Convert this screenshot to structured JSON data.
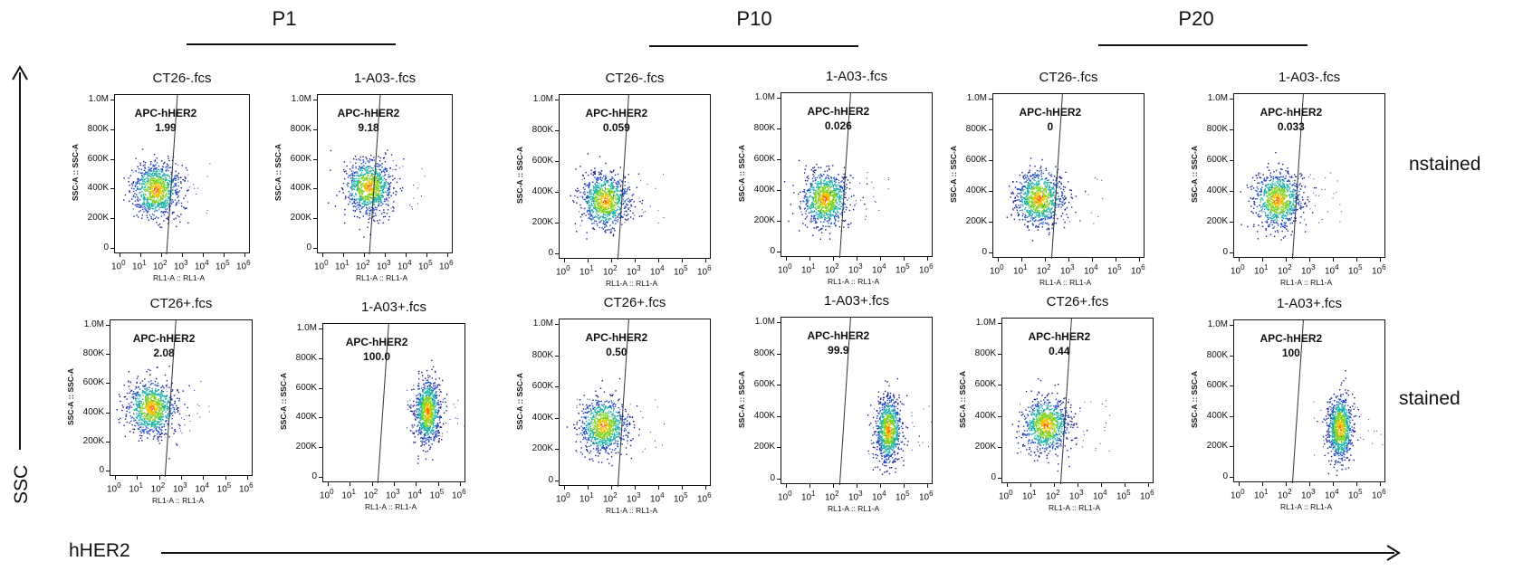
{
  "groups": [
    {
      "label": "P1"
    },
    {
      "label": "P10"
    },
    {
      "label": "P20"
    }
  ],
  "row_labels": [
    "nstained",
    "stained"
  ],
  "y_axis_label": "SSC",
  "x_axis_label": "hHER2",
  "plot_axes": {
    "xlabel": "RL1-A :: RL1-A",
    "ylabel": "SSC-A :: SSC-A",
    "yticks": [
      "1.0M",
      "800K",
      "600K",
      "400K",
      "200K",
      "0"
    ],
    "xtick_exponents": [
      "0",
      "1",
      "2",
      "3",
      "4",
      "5",
      "6"
    ],
    "gate_name": "APC-hHER2"
  },
  "chart_data": [
    {
      "type": "scatter",
      "title": "CT26-.fcs",
      "group": "P1",
      "row": "unstained",
      "gate": "APC-hHER2",
      "gate_percent": "1.99",
      "x_scale": "log",
      "xlim": [
        1,
        1000000
      ],
      "ylim": [
        0,
        1000000
      ],
      "xlabel": "RL1-A :: RL1-A",
      "ylabel": "SSC-A :: SSC-A",
      "population_center": [
        50,
        400000
      ]
    },
    {
      "type": "scatter",
      "title": "1-A03-.fcs",
      "group": "P1",
      "row": "unstained",
      "gate": "APC-hHER2",
      "gate_percent": "9.18",
      "x_scale": "log",
      "xlim": [
        1,
        1000000
      ],
      "ylim": [
        0,
        1000000
      ],
      "xlabel": "RL1-A :: RL1-A",
      "ylabel": "SSC-A :: SSC-A",
      "population_center": [
        150,
        420000
      ]
    },
    {
      "type": "scatter",
      "title": "CT26-.fcs",
      "group": "P10",
      "row": "unstained",
      "gate": "APC-hHER2",
      "gate_percent": "0.059",
      "x_scale": "log",
      "xlim": [
        1,
        1000000
      ],
      "ylim": [
        0,
        1000000
      ],
      "xlabel": "RL1-A :: RL1-A",
      "ylabel": "SSC-A :: SSC-A",
      "population_center": [
        50,
        350000
      ]
    },
    {
      "type": "scatter",
      "title": "1-A03-.fcs",
      "group": "P10",
      "row": "unstained",
      "gate": "APC-hHER2",
      "gate_percent": "0.026",
      "x_scale": "log",
      "xlim": [
        1,
        1000000
      ],
      "ylim": [
        0,
        1000000
      ],
      "xlabel": "RL1-A :: RL1-A",
      "ylabel": "SSC-A :: SSC-A",
      "population_center": [
        40,
        350000
      ]
    },
    {
      "type": "scatter",
      "title": "CT26-.fcs",
      "group": "P20",
      "row": "unstained",
      "gate": "APC-hHER2",
      "gate_percent": "0",
      "x_scale": "log",
      "xlim": [
        1,
        1000000
      ],
      "ylim": [
        0,
        1000000
      ],
      "xlabel": "RL1-A :: RL1-A",
      "ylabel": "SSC-A :: SSC-A",
      "population_center": [
        50,
        360000
      ]
    },
    {
      "type": "scatter",
      "title": "1-A03-.fcs",
      "group": "P20",
      "row": "unstained",
      "gate": "APC-hHER2",
      "gate_percent": "0.033",
      "x_scale": "log",
      "xlim": [
        1,
        1000000
      ],
      "ylim": [
        0,
        1000000
      ],
      "xlabel": "RL1-A :: RL1-A",
      "ylabel": "SSC-A :: SSC-A",
      "population_center": [
        40,
        350000
      ]
    },
    {
      "type": "scatter",
      "title": "CT26+.fcs",
      "group": "P1",
      "row": "stained",
      "gate": "APC-hHER2",
      "gate_percent": "2.08",
      "x_scale": "log",
      "xlim": [
        1,
        1000000
      ],
      "ylim": [
        0,
        1000000
      ],
      "xlabel": "RL1-A :: RL1-A",
      "ylabel": "SSC-A :: SSC-A",
      "population_center": [
        40,
        440000
      ]
    },
    {
      "type": "scatter",
      "title": "1-A03+.fcs",
      "group": "P1",
      "row": "stained",
      "gate": "APC-hHER2",
      "gate_percent": "100.0",
      "x_scale": "log",
      "xlim": [
        1,
        1000000
      ],
      "ylim": [
        0,
        1000000
      ],
      "xlabel": "RL1-A :: RL1-A",
      "ylabel": "SSC-A :: SSC-A",
      "population_center": [
        30000,
        450000
      ]
    },
    {
      "type": "scatter",
      "title": "CT26+.fcs",
      "group": "P10",
      "row": "stained",
      "gate": "APC-hHER2",
      "gate_percent": "0.50",
      "x_scale": "log",
      "xlim": [
        1,
        1000000
      ],
      "ylim": [
        0,
        1000000
      ],
      "xlabel": "RL1-A :: RL1-A",
      "ylabel": "SSC-A :: SSC-A",
      "population_center": [
        40,
        360000
      ]
    },
    {
      "type": "scatter",
      "title": "1-A03+.fcs",
      "group": "P10",
      "row": "stained",
      "gate": "APC-hHER2",
      "gate_percent": "99.9",
      "x_scale": "log",
      "xlim": [
        1,
        1000000
      ],
      "ylim": [
        0,
        1000000
      ],
      "xlabel": "RL1-A :: RL1-A",
      "ylabel": "SSC-A :: SSC-A",
      "population_center": [
        20000,
        320000
      ]
    },
    {
      "type": "scatter",
      "title": "CT26+.fcs",
      "group": "P20",
      "row": "stained",
      "gate": "APC-hHER2",
      "gate_percent": "0.44",
      "x_scale": "log",
      "xlim": [
        1,
        1000000
      ],
      "ylim": [
        0,
        1000000
      ],
      "xlabel": "RL1-A :: RL1-A",
      "ylabel": "SSC-A :: SSC-A",
      "population_center": [
        40,
        350000
      ]
    },
    {
      "type": "scatter",
      "title": "1-A03+.fcs",
      "group": "P20",
      "row": "stained",
      "gate": "APC-hHER2",
      "gate_percent": "100",
      "x_scale": "log",
      "xlim": [
        1,
        1000000
      ],
      "ylim": [
        0,
        1000000
      ],
      "xlabel": "RL1-A :: RL1-A",
      "ylabel": "SSC-A :: SSC-A",
      "population_center": [
        18000,
        330000
      ]
    }
  ]
}
